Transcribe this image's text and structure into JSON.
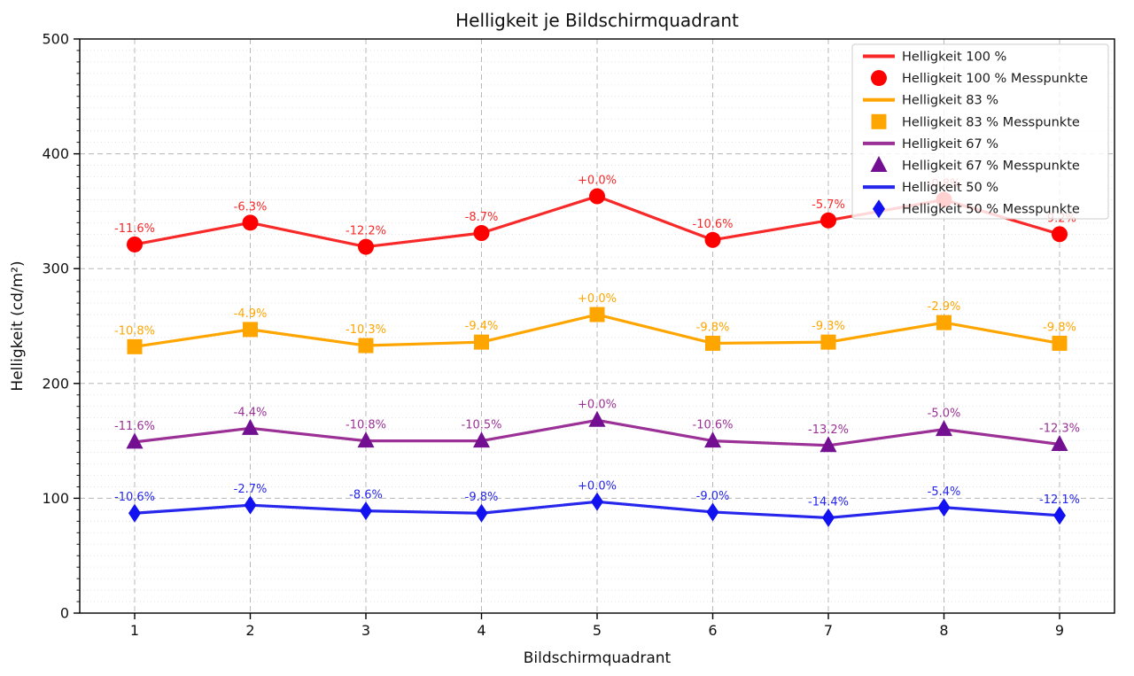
{
  "chart_data": {
    "type": "line",
    "title": "Helligkeit je Bildschirmquadrant",
    "xlabel": "Bildschirmquadrant",
    "ylabel": "Helligkeit (cd/m²)",
    "x": [
      1,
      2,
      3,
      4,
      5,
      6,
      7,
      8,
      9
    ],
    "xticks": [
      "1",
      "2",
      "3",
      "4",
      "5",
      "6",
      "7",
      "8",
      "9"
    ],
    "yticks": [
      "0",
      "100",
      "200",
      "300",
      "400",
      "500"
    ],
    "ylim": [
      0,
      500
    ],
    "grid": {
      "major": "dashed",
      "minor_horizontal_step": 10,
      "minor_style": "dotted"
    },
    "legend_position": "upper right",
    "series": [
      {
        "name": "Helligkeit 100 %",
        "messpunkte_name": "Helligkeit 100 % Messpunkte",
        "marker": "circle",
        "color": "#f72929",
        "marker_color": "#ff0000",
        "values": [
          321,
          340,
          319,
          331,
          363,
          325,
          342,
          360,
          330
        ],
        "labels": [
          "-11.6%",
          "-6.3%",
          "-12.2%",
          "-8.7%",
          "+0.0%",
          "-10.6%",
          "-5.7%",
          "-0.8%",
          "-9.2%"
        ]
      },
      {
        "name": "Helligkeit 83 %",
        "messpunkte_name": "Helligkeit 83 % Messpunkte",
        "marker": "square",
        "color": "#ffa500",
        "marker_color": "#ffa500",
        "values": [
          232,
          247,
          233,
          236,
          260,
          235,
          236,
          253,
          235
        ],
        "labels": [
          "-10.8%",
          "-4.9%",
          "-10.3%",
          "-9.4%",
          "+0.0%",
          "-9.8%",
          "-9.3%",
          "-2.9%",
          "-9.8%"
        ]
      },
      {
        "name": "Helligkeit 67 %",
        "messpunkte_name": "Helligkeit 67 % Messpunkte",
        "marker": "triangle",
        "color": "#9b3196",
        "marker_color": "#721091",
        "values": [
          149,
          161,
          150,
          150,
          168,
          150,
          146,
          160,
          147
        ],
        "labels": [
          "-11.6%",
          "-4.4%",
          "-10.8%",
          "-10.5%",
          "+0.0%",
          "-10.6%",
          "-13.2%",
          "-5.0%",
          "-12.3%"
        ]
      },
      {
        "name": "Helligkeit 50 %",
        "messpunkte_name": "Helligkeit 50 % Messpunkte",
        "marker": "diamond",
        "color": "#2626ec",
        "marker_color": "#1212f0",
        "values": [
          87,
          94,
          89,
          87,
          97,
          88,
          83,
          92,
          85
        ],
        "labels": [
          "-10.6%",
          "-2.7%",
          "-8.6%",
          "-9.8%",
          "+0.0%",
          "-9.0%",
          "-14.4%",
          "-5.4%",
          "-12.1%"
        ]
      }
    ]
  }
}
